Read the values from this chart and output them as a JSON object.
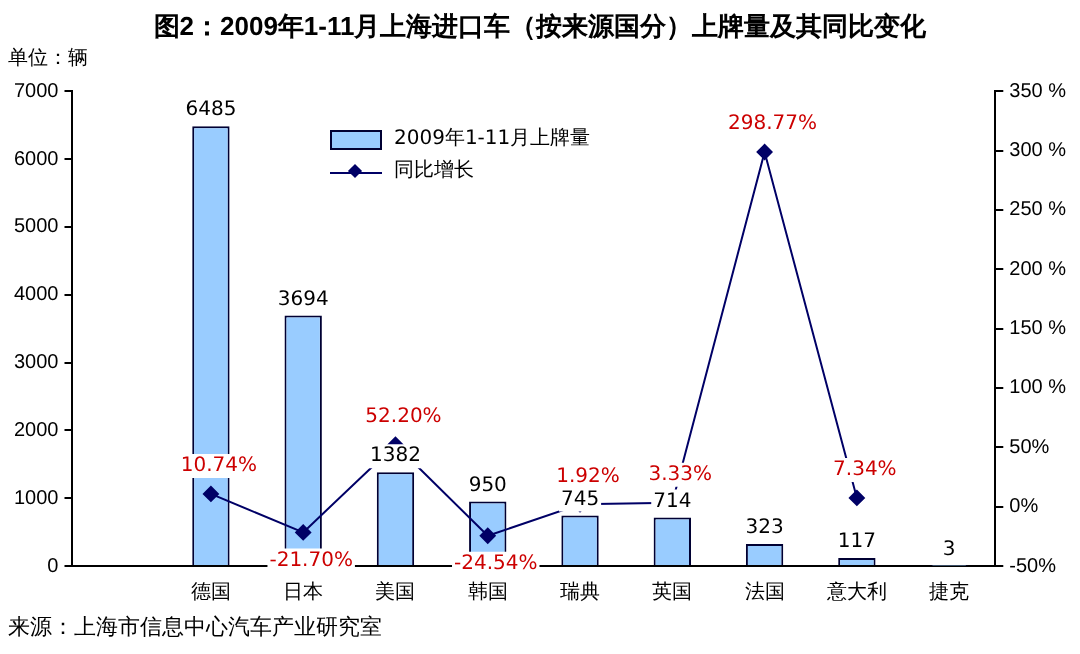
{
  "chart_data": {
    "type": "bar",
    "title": "图2：2009年1-11月上海进口车（按来源国分）上牌量及其同比变化",
    "ylabel": "单位：辆",
    "categories": [
      null,
      "德国",
      "日本",
      "美国",
      "韩国",
      "瑞典",
      "英国",
      "法国",
      "意大利",
      "捷克"
    ],
    "series": [
      {
        "name": "2009年1-11月上牌量",
        "color": "#99ccff",
        "values": [
          null,
          6485,
          3694,
          1382,
          950,
          745,
          714,
          323,
          117,
          3
        ],
        "value_labels": [
          null,
          "6485",
          "3694",
          "1382",
          "950",
          "745",
          "714",
          "323",
          "117",
          "3"
        ]
      },
      {
        "name": "同比增长",
        "type": "line",
        "axis": "y2",
        "color": "#000066",
        "marker": "diamond",
        "values": [
          null,
          10.74,
          -21.7,
          52.2,
          -24.54,
          1.92,
          3.33,
          298.77,
          7.34,
          null
        ],
        "value_labels": [
          null,
          "10.74%",
          "-21.70%",
          "52.20%",
          "-24.54%",
          "1.92%",
          "3.33%",
          "298.77%",
          "7.34%",
          null
        ]
      }
    ],
    "ylim": [
      0,
      7000
    ],
    "yticks": [
      0,
      1000,
      2000,
      3000,
      4000,
      5000,
      6000,
      7000
    ],
    "y2lim": [
      -50,
      350
    ],
    "y2ticks": [
      {
        "value": -50,
        "label": "-50%"
      },
      {
        "value": 0,
        "label": "0%"
      },
      {
        "value": 50,
        "label": "50%"
      },
      {
        "value": 100,
        "label": "100 %"
      },
      {
        "value": 150,
        "label": "150 %"
      },
      {
        "value": 200,
        "label": "200 %"
      },
      {
        "value": 250,
        "label": "250 %"
      },
      {
        "value": 300,
        "label": "300 %"
      },
      {
        "value": 350,
        "label": "350 %"
      }
    ],
    "grid": false,
    "legend": "top",
    "annotations": [
      "来源：上海市信息中心汽车产业研究室"
    ]
  }
}
